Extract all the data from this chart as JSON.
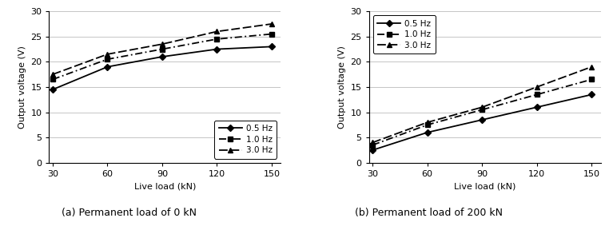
{
  "x": [
    30,
    60,
    90,
    120,
    150
  ],
  "panel_a": {
    "title": "(a) Permanent load of 0 kN",
    "series": {
      "0.5 Hz": [
        14.5,
        19.0,
        21.0,
        22.5,
        23.0
      ],
      "1.0 Hz": [
        16.5,
        20.5,
        22.5,
        24.5,
        25.5
      ],
      "3.0 Hz": [
        17.5,
        21.5,
        23.5,
        26.0,
        27.5
      ]
    }
  },
  "panel_b": {
    "title": "(b) Permanent load of 200 kN",
    "series": {
      "0.5 Hz": [
        2.5,
        6.0,
        8.5,
        11.0,
        13.5
      ],
      "1.0 Hz": [
        3.5,
        7.5,
        10.5,
        13.5,
        16.5
      ],
      "3.0 Hz": [
        4.0,
        8.0,
        11.0,
        15.0,
        19.0
      ]
    }
  },
  "ylim": [
    0,
    30
  ],
  "yticks": [
    0,
    5,
    10,
    15,
    20,
    25,
    30
  ],
  "xticks": [
    30,
    60,
    90,
    120,
    150
  ],
  "xlabel": "Live load (kN)",
  "ylabel": "Output voltage (V)",
  "color": "black",
  "legend_loc_a": "lower right",
  "legend_loc_b": "upper left",
  "figwidth": 7.67,
  "figheight": 2.83,
  "dpi": 100
}
